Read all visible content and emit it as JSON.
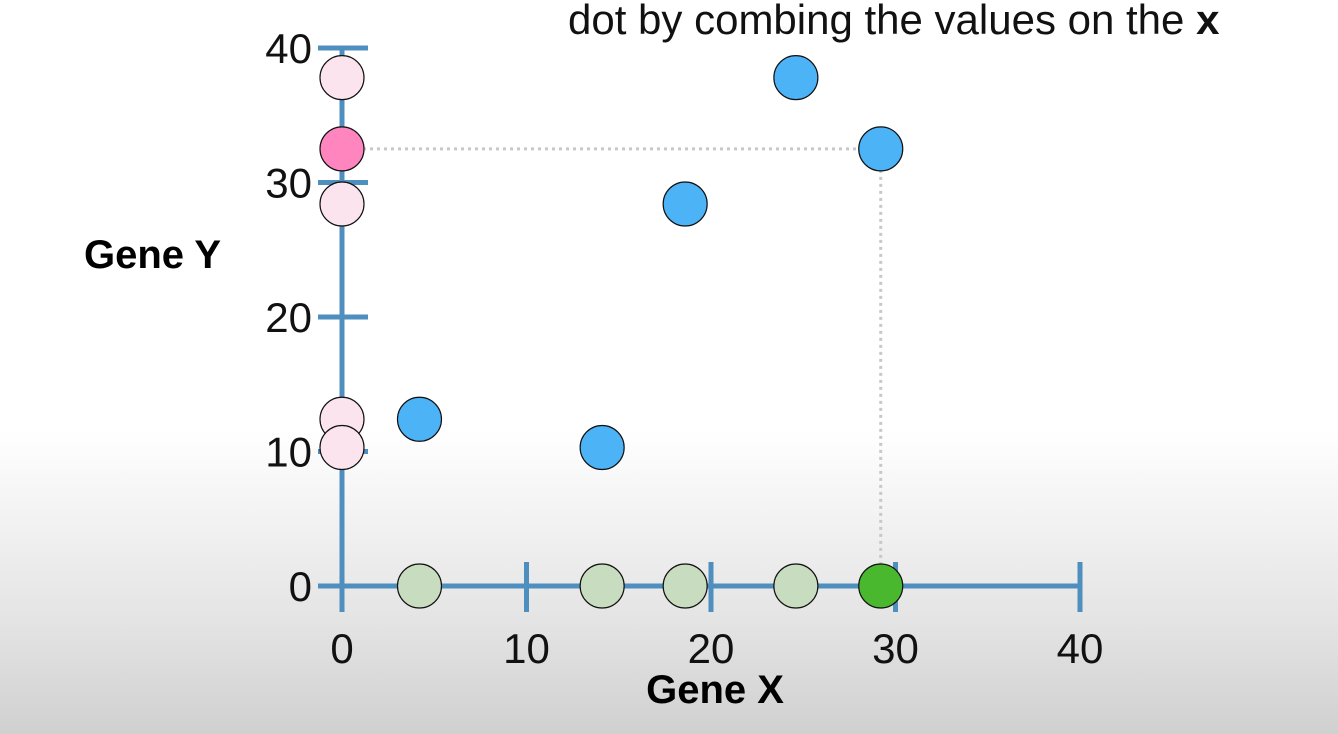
{
  "caption": {
    "text": "dot by combing the values on the",
    "bold": "x"
  },
  "chart_data": {
    "type": "scatter",
    "xlabel": "Gene X",
    "ylabel": "Gene Y",
    "xlim": [
      0,
      40
    ],
    "ylim": [
      0,
      40
    ],
    "xticks": [
      "0",
      "10",
      "20",
      "30",
      "40"
    ],
    "yticks": [
      "0",
      "10",
      "20",
      "30",
      "40"
    ],
    "grid": false,
    "colors": {
      "axis": "#4f8fbf",
      "point": "#4db3f7",
      "x_projection": "#c8dcc0",
      "x_projection_highlight": "#4ab82e",
      "y_projection": "#fce4ee",
      "y_projection_highlight": "#ff85be",
      "guide": "#c8c8c8"
    },
    "points": [
      {
        "x": 4.2,
        "y": 12.4
      },
      {
        "x": 14.1,
        "y": 10.3
      },
      {
        "x": 18.6,
        "y": 28.4
      },
      {
        "x": 24.6,
        "y": 37.8
      },
      {
        "x": 29.2,
        "y": 32.5
      }
    ],
    "highlight_index": 4
  }
}
